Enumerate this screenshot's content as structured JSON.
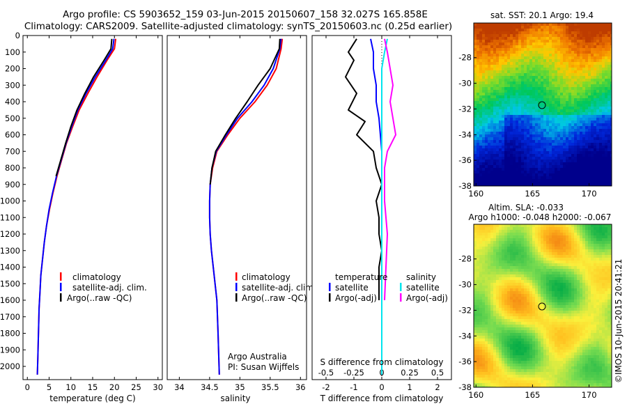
{
  "title_line1": "Argo profile: CS 5903652_159 03-Jun-2015 20150607_158 32.027S 165.858E",
  "title_line2": "Climatology: CARS2009. Satellite-adjusted climatology: synTS_20150603.nc (0.25d earlier)",
  "sst_title": "sat. SST: 20.1  Argo: 19.4",
  "sla_title1": "Altim. SLA: -0.033",
  "sla_title2": "Argo h1000: -0.048 h2000: -0.067",
  "credit": "©IMOS 10-Jun-2015 20:41:21",
  "annotation_argo": "Argo Australia",
  "annotation_pi": "PI: Susan Wijffels",
  "s_diff_label": "S difference from climatology",
  "colors": {
    "climatology": "#ff0000",
    "satellite": "#0000ff",
    "argo": "#000000",
    "sat_s": "#00e5ee",
    "argo_s": "#ff00ff"
  },
  "legend_main": [
    "climatology",
    "satellite-adj. clim.",
    "Argo(..raw -QC)"
  ],
  "legend_diff": {
    "t_head": "temperature",
    "s_head": "salinity",
    "t_items": [
      "satellite",
      "Argo(-adj)"
    ],
    "s_items": [
      "satellite",
      "Argo(-adj)"
    ]
  },
  "chart_data": [
    {
      "type": "line",
      "xlabel": "temperature (deg C)",
      "ylabel": "",
      "xlim": [
        -1,
        31
      ],
      "ylim": [
        2080,
        0
      ],
      "xticks": [
        0,
        5,
        10,
        15,
        20,
        25,
        30
      ],
      "yticks": [
        0,
        100,
        200,
        300,
        400,
        500,
        600,
        700,
        800,
        900,
        1000,
        1100,
        1200,
        1300,
        1400,
        1500,
        1600,
        1700,
        1800,
        1900,
        2000
      ],
      "series": [
        {
          "name": "climatology",
          "x": [
            20.3,
            20.0,
            18.3,
            16.0,
            13.9,
            11.9,
            10.4,
            9.0,
            7.9,
            6.8,
            5.9,
            5.1,
            4.4,
            3.9,
            3.5,
            3.1,
            2.9,
            2.7,
            2.6,
            2.4,
            2.3
          ],
          "y": [
            20,
            80,
            150,
            250,
            350,
            450,
            550,
            650,
            750,
            850,
            950,
            1050,
            1150,
            1250,
            1350,
            1450,
            1550,
            1650,
            1750,
            1950,
            2050
          ]
        },
        {
          "name": "satellite-adj. clim.",
          "x": [
            19.9,
            19.6,
            18.0,
            15.6,
            13.5,
            11.6,
            10.2,
            8.9,
            7.8,
            6.7,
            5.8,
            5.0,
            4.4,
            3.9,
            3.5,
            3.1,
            2.9,
            2.7,
            2.6,
            2.4,
            2.3
          ],
          "y": [
            20,
            80,
            150,
            250,
            350,
            450,
            550,
            650,
            750,
            850,
            950,
            1050,
            1150,
            1250,
            1350,
            1450,
            1550,
            1650,
            1750,
            1950,
            2050
          ]
        },
        {
          "name": "Argo(..raw -QC)",
          "x": [
            19.4,
            19.2,
            17.6,
            15.2,
            13.2,
            11.4,
            10.0,
            8.8,
            7.7,
            6.6
          ],
          "y": [
            20,
            80,
            150,
            250,
            350,
            450,
            550,
            650,
            750,
            850
          ]
        }
      ]
    },
    {
      "type": "line",
      "xlabel": "salinity",
      "ylabel": "",
      "xlim": [
        33.8,
        36.1
      ],
      "ylim": [
        2080,
        0
      ],
      "xticks": [
        34,
        34.5,
        35,
        35.5,
        36
      ],
      "series": [
        {
          "name": "climatology",
          "x": [
            35.7,
            35.68,
            35.6,
            35.45,
            35.25,
            35.0,
            34.8,
            34.62,
            34.55,
            34.51,
            34.5,
            34.5,
            34.51,
            34.53,
            34.56,
            34.59,
            34.62,
            34.64,
            34.66
          ],
          "y": [
            20,
            80,
            200,
            300,
            400,
            500,
            600,
            700,
            800,
            900,
            1000,
            1100,
            1200,
            1300,
            1400,
            1500,
            1600,
            1800,
            2050
          ]
        },
        {
          "name": "satellite-adj. clim.",
          "x": [
            35.68,
            35.66,
            35.55,
            35.4,
            35.2,
            34.96,
            34.78,
            34.61,
            34.54,
            34.51,
            34.5,
            34.5,
            34.51,
            34.53,
            34.56,
            34.59,
            34.62,
            34.64,
            34.66
          ],
          "y": [
            20,
            80,
            200,
            300,
            400,
            500,
            600,
            700,
            800,
            900,
            1000,
            1100,
            1200,
            1300,
            1400,
            1500,
            1600,
            1800,
            2050
          ]
        },
        {
          "name": "Argo(..raw -QC)",
          "x": [
            35.66,
            35.65,
            35.5,
            35.3,
            35.12,
            34.93,
            34.76,
            34.6,
            34.54,
            34.51
          ],
          "y": [
            20,
            80,
            200,
            300,
            400,
            500,
            600,
            700,
            800,
            900
          ]
        }
      ]
    },
    {
      "type": "line",
      "xlabel": "T difference from climatology",
      "ylabel": "",
      "xlim": [
        -2.5,
        2.5
      ],
      "ylim": [
        2080,
        0
      ],
      "xticks": [
        -2,
        -1,
        0,
        1,
        2
      ],
      "s_xticks_labels": [
        "-0.5",
        "-0.25",
        "0",
        "0.25",
        "0.5"
      ],
      "s_xticks_at": [
        -2,
        -1,
        0,
        1,
        2
      ],
      "series": [
        {
          "name": "satellite",
          "x": [
            -0.4,
            -0.3,
            -0.3,
            -0.2,
            -0.2,
            -0.1,
            -0.05,
            0,
            0,
            0,
            0,
            0,
            0,
            0,
            0,
            0,
            0
          ],
          "y": [
            20,
            100,
            200,
            300,
            400,
            500,
            600,
            700,
            800,
            900,
            1000,
            1100,
            1200,
            1300,
            1400,
            1600,
            2050
          ]
        },
        {
          "name": "Argo(-adj)",
          "x": [
            -0.9,
            -1.2,
            -1.0,
            -1.3,
            -0.9,
            -1.2,
            -0.6,
            -0.9,
            -0.3,
            -0.2,
            0.0,
            -0.2,
            -0.1,
            -0.1,
            0.0,
            -0.1,
            -0.1,
            -0.1
          ],
          "y": [
            20,
            100,
            150,
            250,
            350,
            450,
            520,
            600,
            700,
            800,
            900,
            1000,
            1100,
            1200,
            1300,
            1400,
            1500,
            1600
          ]
        },
        {
          "name": "satellite S",
          "x": [
            0.2,
            0.1,
            0.0,
            0.0,
            0.0,
            0.0,
            0.0,
            0.0,
            0.0,
            0.0
          ],
          "y": [
            20,
            100,
            200,
            400,
            600,
            800,
            1000,
            1200,
            1600,
            2050
          ]
        },
        {
          "name": "Argo(-adj) S",
          "x": [
            0.1,
            0.2,
            0.4,
            0.3,
            0.5,
            0.2,
            0.1,
            0.1,
            0.2,
            0.1
          ],
          "y": [
            20,
            100,
            300,
            400,
            600,
            700,
            800,
            1000,
            1200,
            1600
          ]
        }
      ]
    },
    {
      "type": "heatmap",
      "title": "sat. SST: 20.1  Argo: 19.4",
      "xlim": [
        159.8,
        172
      ],
      "ylim": [
        -38,
        -25.3
      ],
      "xticks": [
        160,
        165,
        170
      ],
      "yticks": [
        -28,
        -30,
        -32,
        -34,
        -36,
        -38
      ],
      "marker": {
        "lon": 165.858,
        "lat": -32.027
      }
    },
    {
      "type": "heatmap",
      "title": "Altim. SLA: -0.033",
      "xlim": [
        159.8,
        172
      ],
      "ylim": [
        -38,
        -25.3
      ],
      "xticks": [
        160,
        165,
        170
      ],
      "yticks": [
        -28,
        -30,
        -32,
        -34,
        -36,
        -38
      ],
      "marker": {
        "lon": 165.858,
        "lat": -32.027
      }
    }
  ]
}
